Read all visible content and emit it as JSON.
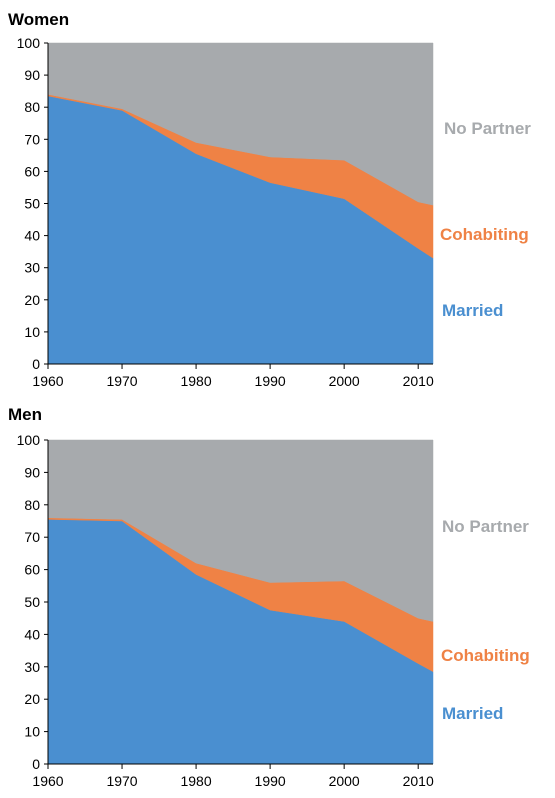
{
  "chart_data": [
    {
      "type": "area",
      "title": "Women",
      "x": [
        1960,
        1970,
        1980,
        1990,
        2000,
        2010,
        2012
      ],
      "xticks": [
        1960,
        1970,
        1980,
        1990,
        2000,
        2010
      ],
      "xlim": [
        1960,
        2012
      ],
      "yticks": [
        0,
        10,
        20,
        30,
        40,
        50,
        60,
        70,
        80,
        90,
        100
      ],
      "ylim": [
        0,
        100
      ],
      "stacked": true,
      "series": [
        {
          "name": "Married",
          "values": [
            83.5,
            79,
            65.5,
            56.5,
            51.5,
            36,
            33
          ],
          "color": "#4a8fd0"
        },
        {
          "name": "Cohabiting",
          "values": [
            0.5,
            0.5,
            3.5,
            8,
            12,
            14.5,
            16.5
          ],
          "color": "#ef8245"
        },
        {
          "name": "No Partner",
          "values": [
            16,
            20.5,
            31,
            35.5,
            36.5,
            49.5,
            50.5
          ],
          "color": "#a7aaad"
        }
      ],
      "grid": false,
      "legend": "inline-right"
    },
    {
      "type": "area",
      "title": "Men",
      "x": [
        1960,
        1970,
        1980,
        1990,
        2000,
        2010,
        2012
      ],
      "xticks": [
        1960,
        1970,
        1980,
        1990,
        2000,
        2010
      ],
      "xlim": [
        1960,
        2012
      ],
      "yticks": [
        0,
        10,
        20,
        30,
        40,
        50,
        60,
        70,
        80,
        90,
        100
      ],
      "ylim": [
        0,
        100
      ],
      "stacked": true,
      "series": [
        {
          "name": "Married",
          "values": [
            75.5,
            75,
            58.5,
            47.5,
            44,
            31,
            28.5
          ],
          "color": "#4a8fd0"
        },
        {
          "name": "Cohabiting",
          "values": [
            0.5,
            0.5,
            3.5,
            8.5,
            12.5,
            14,
            15.5
          ],
          "color": "#ef8245"
        },
        {
          "name": "No Partner",
          "values": [
            24,
            24.5,
            38,
            44,
            43.5,
            55,
            56
          ],
          "color": "#a7aaad"
        }
      ],
      "grid": false,
      "legend": "inline-right"
    }
  ]
}
